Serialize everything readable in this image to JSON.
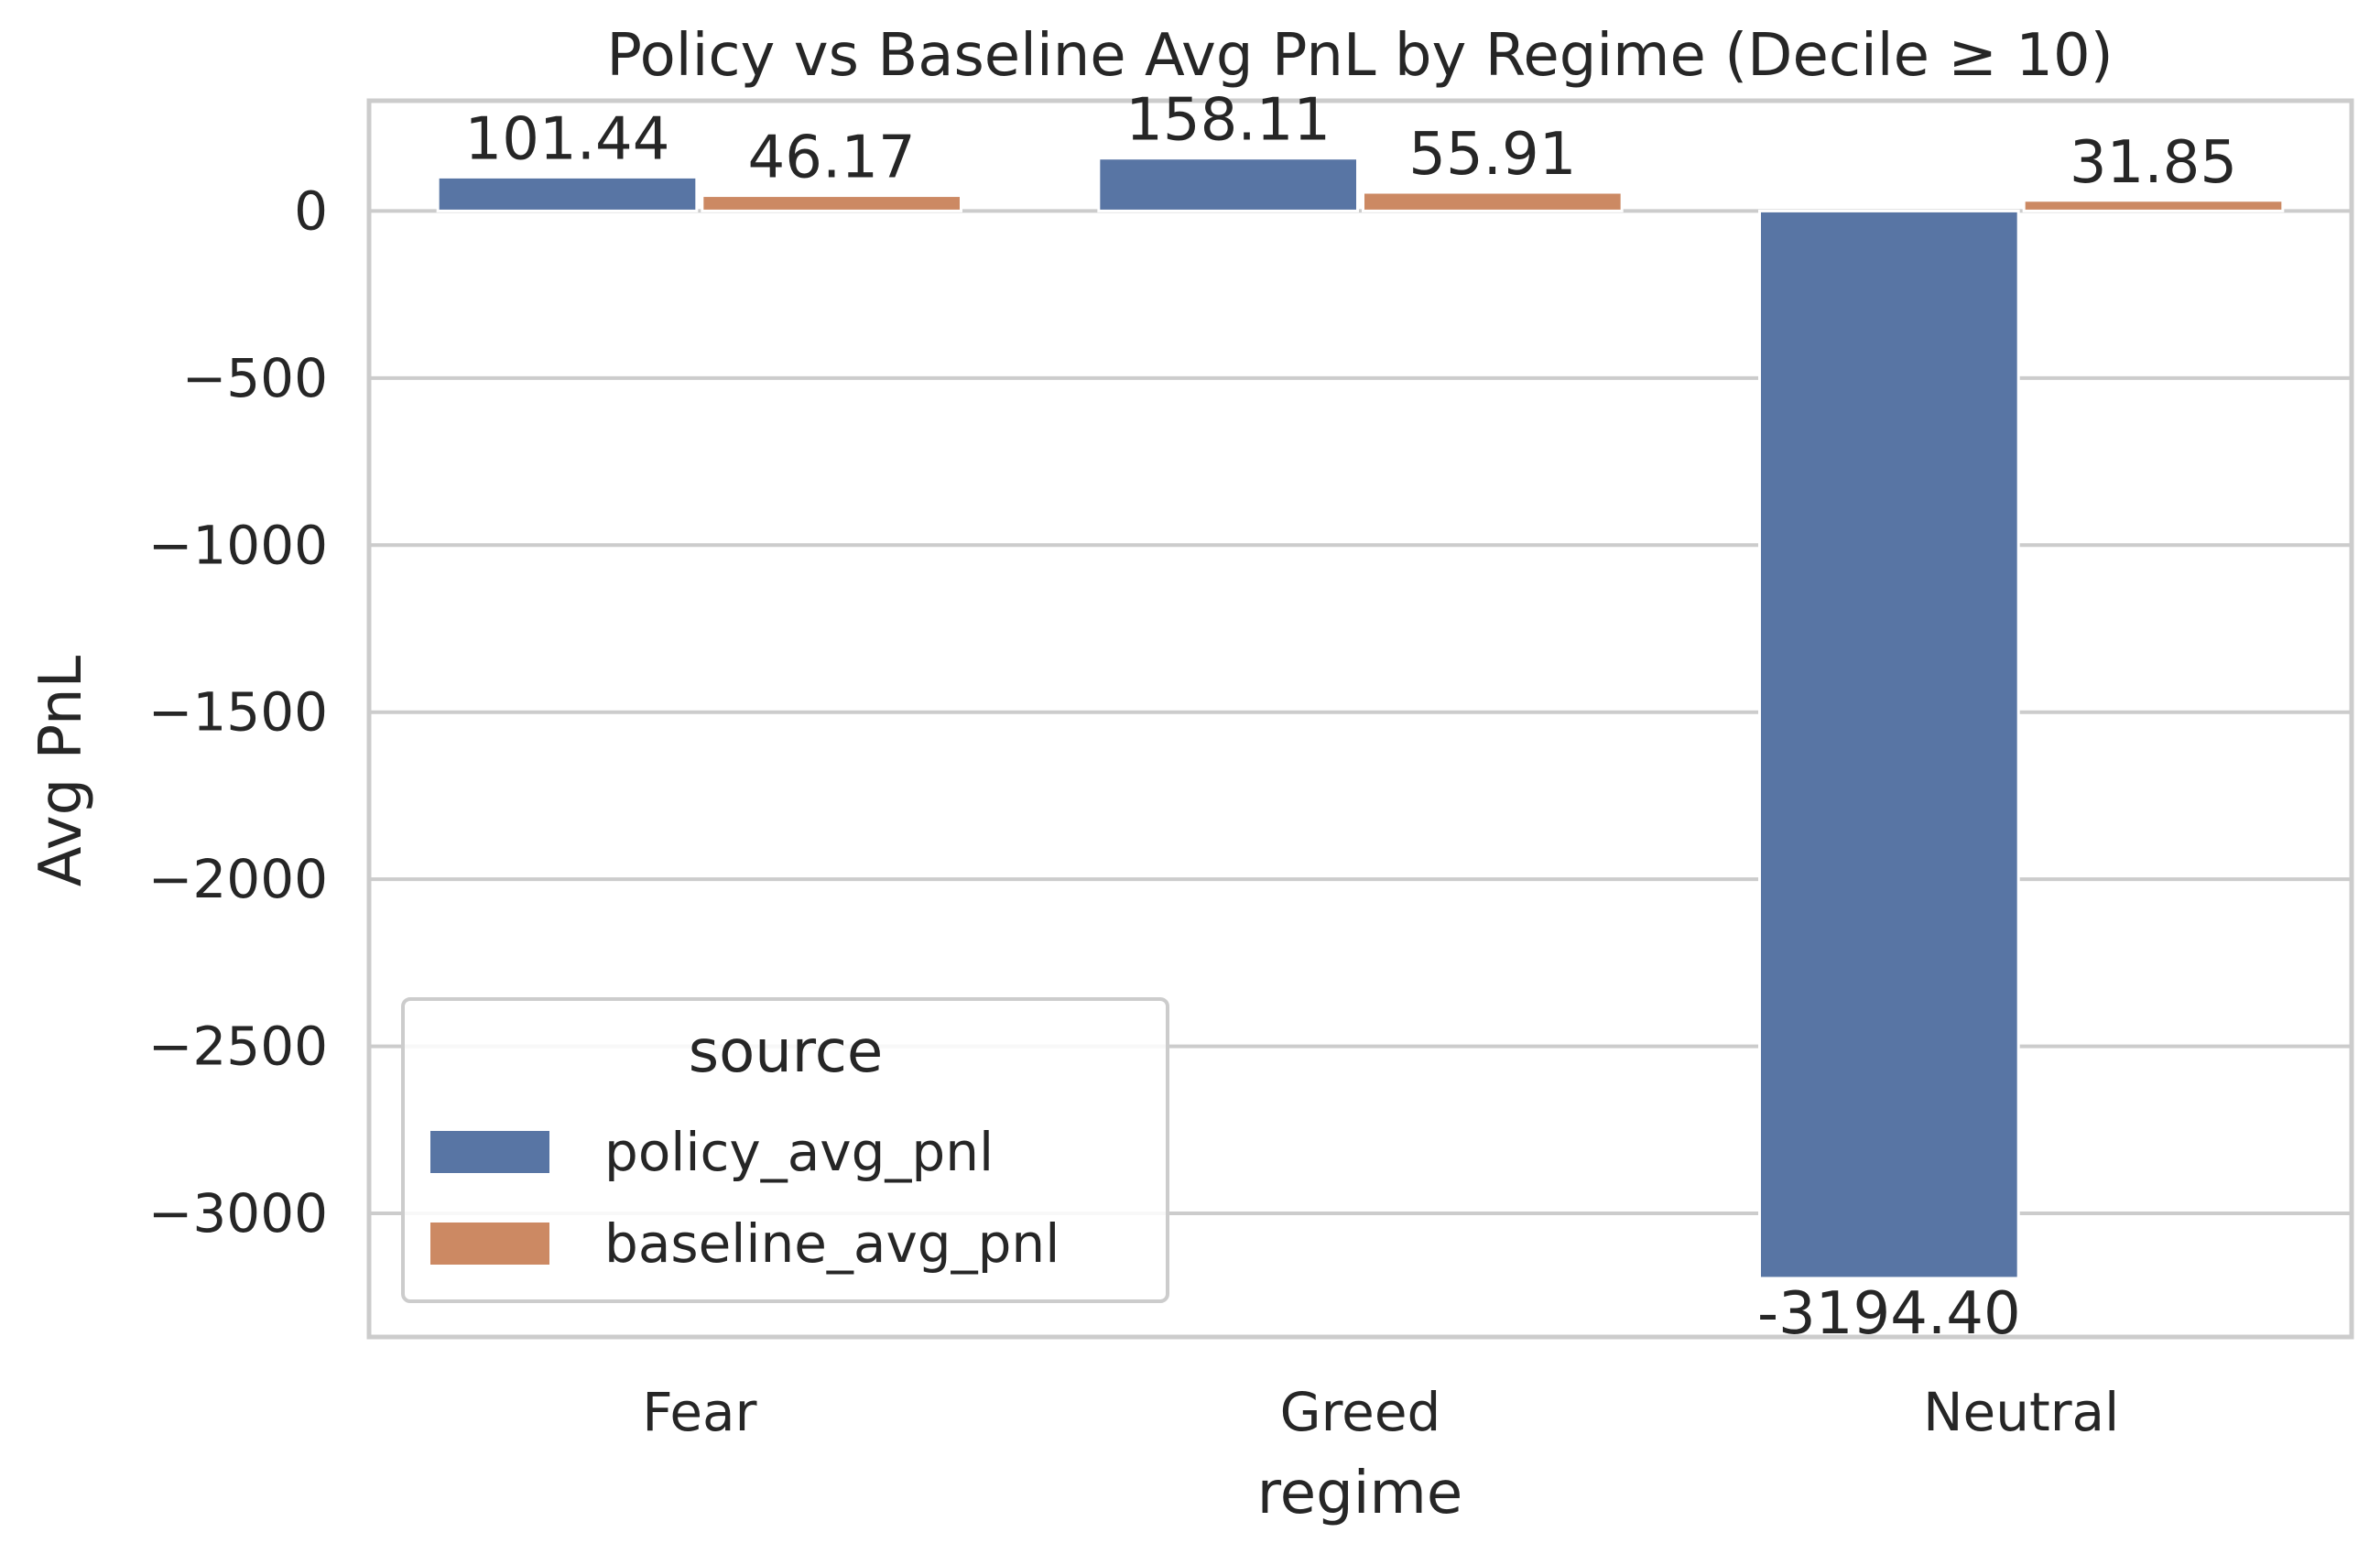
{
  "chart_data": {
    "type": "bar",
    "title": "Policy vs Baseline Avg PnL by Regime (Decile ≥ 10)",
    "xlabel": "regime",
    "ylabel": "Avg PnL",
    "categories": [
      "Fear",
      "Greed",
      "Neutral"
    ],
    "series": [
      {
        "name": "policy_avg_pnl",
        "color": "#5875a4",
        "values": [
          101.44,
          158.11,
          -3194.4
        ],
        "labels": [
          "101.44",
          "158.11",
          "-3194.40"
        ]
      },
      {
        "name": "baseline_avg_pnl",
        "color": "#cc8963",
        "values": [
          46.17,
          55.91,
          31.85
        ],
        "labels": [
          "46.17",
          "55.91",
          "31.85"
        ]
      }
    ],
    "ylim": [
      -3370,
      330
    ],
    "yticks": [
      0,
      -500,
      -1000,
      -1500,
      -2000,
      -2500,
      -3000
    ],
    "ytick_labels": [
      "0",
      "−500",
      "−1000",
      "−1500",
      "−2000",
      "−2500",
      "−3000"
    ],
    "grid": "horizontal",
    "legend": {
      "title": "source",
      "placement": "lower-left"
    }
  }
}
